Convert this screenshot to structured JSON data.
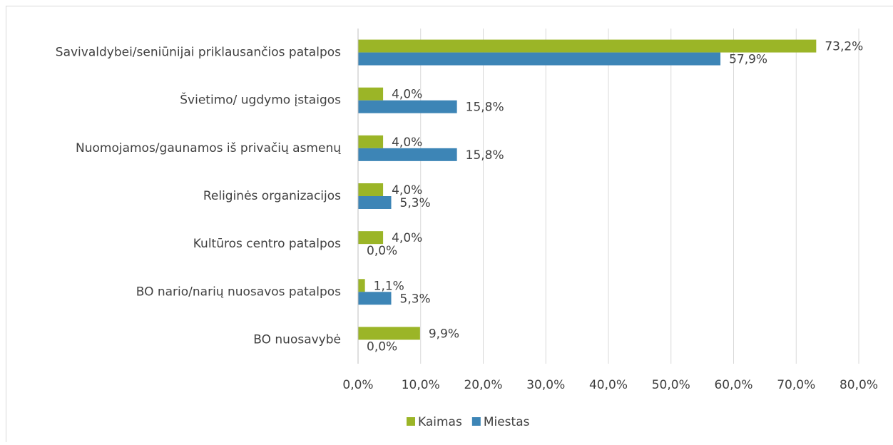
{
  "chart_data": {
    "type": "barh",
    "categories": [
      "Savivaldybei/seniūnijai priklausančios patalpos",
      "Švietimo/ ugdymo įstaigos",
      "Nuomojamos/gaunamos iš privačių asmenų",
      "Religinės organizacijos",
      "Kultūros centro patalpos",
      "BO nario/narių nuosavos patalpos",
      "BO nuosavybė"
    ],
    "series": [
      {
        "name": "Kaimas",
        "color": "#9bb527",
        "values": [
          73.2,
          4.0,
          4.0,
          4.0,
          4.0,
          1.1,
          9.9
        ],
        "value_labels": [
          "73,2%",
          "4,0%",
          "4,0%",
          "4,0%",
          "4,0%",
          "1,1%",
          "9,9%"
        ]
      },
      {
        "name": "Miestas",
        "color": "#3d85b6",
        "values": [
          57.9,
          15.8,
          15.8,
          5.3,
          0.0,
          5.3,
          0.0
        ],
        "value_labels": [
          "57,9%",
          "15,8%",
          "15,8%",
          "5,3%",
          "0,0%",
          "5,3%",
          "0,0%"
        ]
      }
    ],
    "xlim": [
      0,
      80
    ],
    "xticks": [
      {
        "value": 0,
        "label": "0,0%"
      },
      {
        "value": 10,
        "label": "10,0%"
      },
      {
        "value": 20,
        "label": "20,0%"
      },
      {
        "value": 30,
        "label": "30,0%"
      },
      {
        "value": 40,
        "label": "40,0%"
      },
      {
        "value": 50,
        "label": "50,0%"
      },
      {
        "value": 60,
        "label": "60,0%"
      },
      {
        "value": 70,
        "label": "70,0%"
      },
      {
        "value": 80,
        "label": "80,0%"
      }
    ],
    "grid": true,
    "legend": "bottom"
  }
}
